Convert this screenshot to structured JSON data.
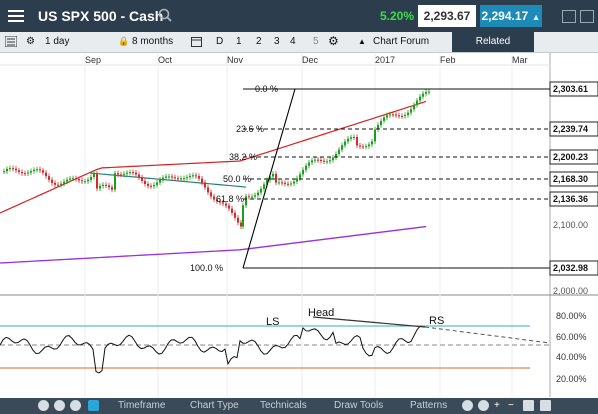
{
  "header": {
    "title": "US SPX 500 - Cash",
    "change_pct": "5.20%",
    "bid": "2,293.67",
    "ask": "2,294.17",
    "colors": {
      "bar": "#2c3e4e",
      "up": "#3ddc4a",
      "ask": "#1d8ab7"
    }
  },
  "toolbar": {
    "interval": "1 day",
    "range": "8 months",
    "draw_mode": "D",
    "layouts": [
      "1",
      "2",
      "3",
      "4",
      "5"
    ],
    "chart_forum": "Chart Forum",
    "related": "Related"
  },
  "months": [
    "Sep",
    "Oct",
    "Nov",
    "Dec",
    "2017",
    "Feb",
    "Mar"
  ],
  "fib": {
    "labels": [
      "0.0 %",
      "23.6 %",
      "38.2 %",
      "50.0 %",
      "61.8 %",
      "100.0 %"
    ],
    "price_tags": [
      "2,303.61",
      "2,239.74",
      "2,200.23",
      "2,168.30",
      "2,136.36",
      "2,032.98"
    ]
  },
  "price_axis": [
    "2,100.00",
    "2,000.00"
  ],
  "indicator_axis": [
    "80.00%",
    "60.00%",
    "40.00%",
    "20.00%"
  ],
  "pattern_labels": {
    "ls": "LS",
    "head": "Head",
    "rs": "RS"
  },
  "bottom_bar": {
    "items": [
      "Timeframe",
      "Chart Type",
      "Technicals",
      "Draw Tools",
      "Patterns"
    ]
  }
}
